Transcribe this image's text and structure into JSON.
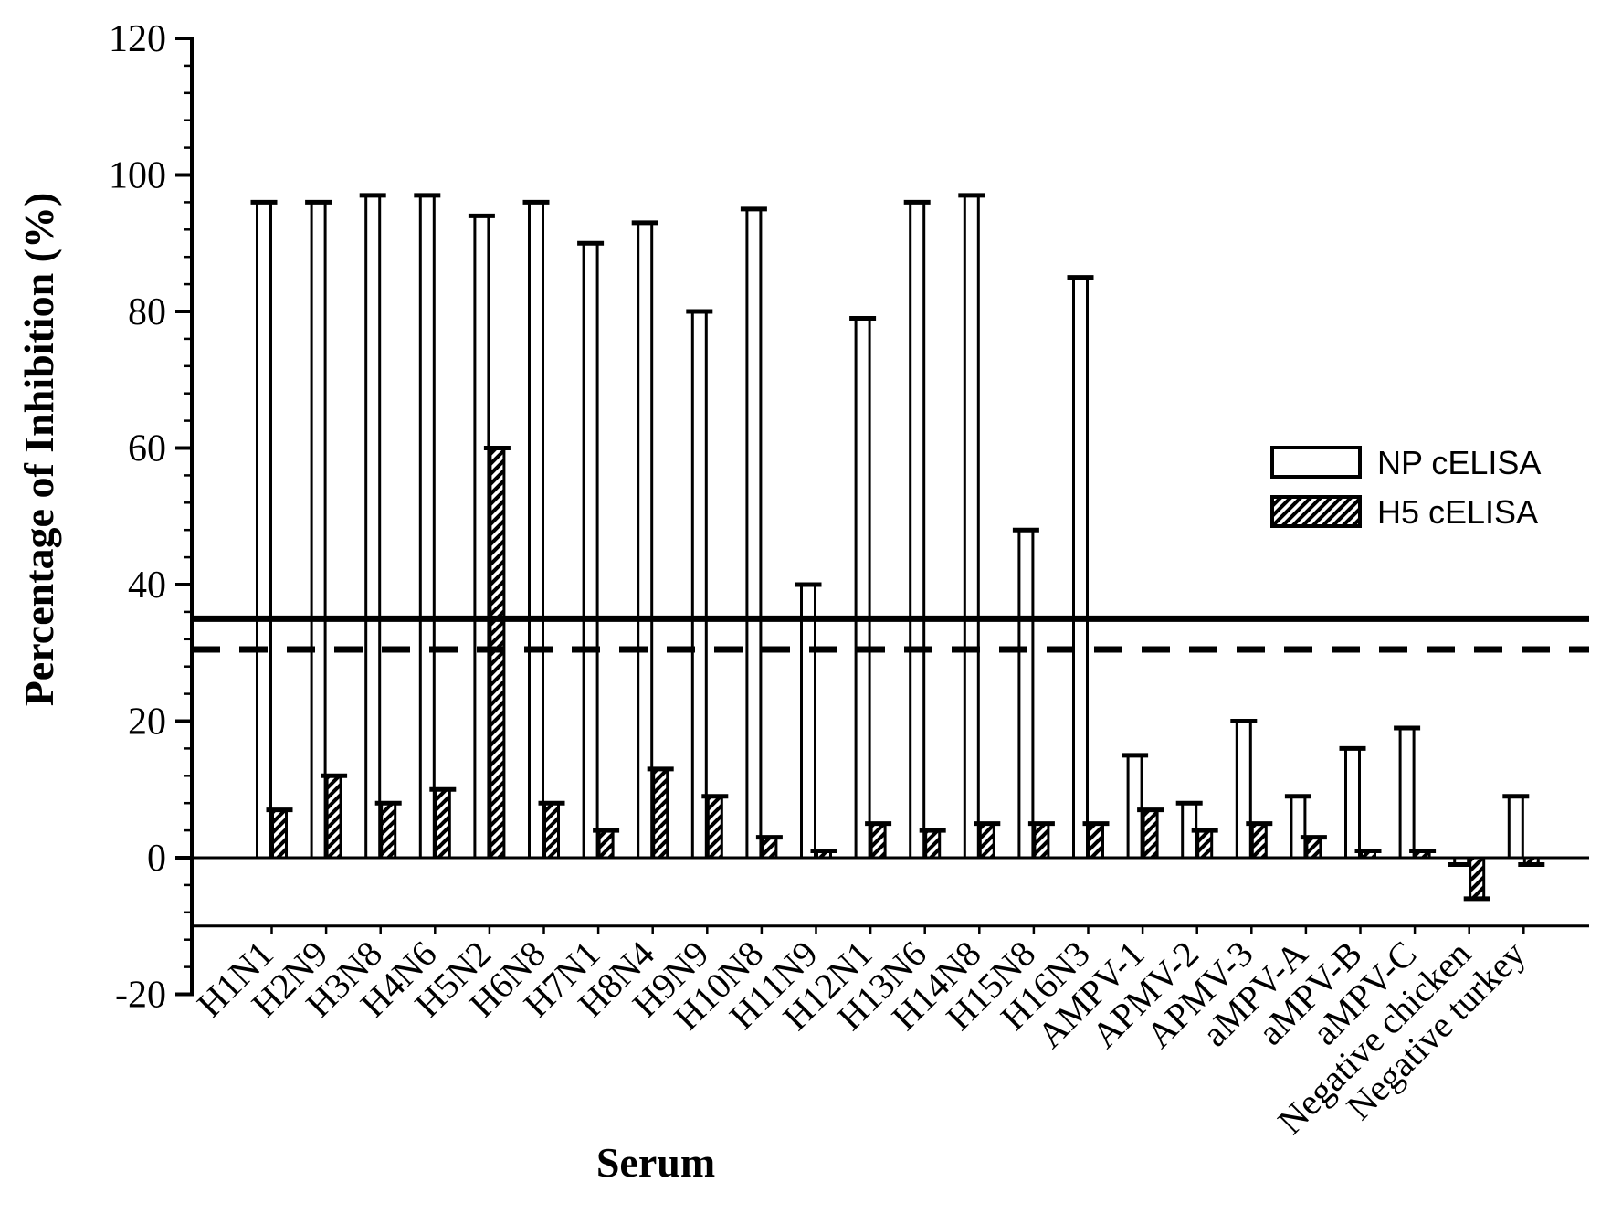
{
  "page": {
    "background": "#ffffff",
    "foreground": "#000000"
  },
  "chart_data": {
    "type": "bar",
    "title": "",
    "xlabel": "Serum",
    "ylabel": "Percentage of Inhibition (%)",
    "ylim": [
      -20,
      120
    ],
    "y_tick_labels": [
      120,
      100,
      80,
      60,
      40,
      20,
      0,
      -20
    ],
    "y_major_step": 20,
    "y_minor_step": 4,
    "grid": false,
    "legend_position": "upper-right",
    "bar_style_note": "open = white fill black outline, hatched = diagonal black hatching; each bar has a small error-bar cap at its end",
    "categories": [
      "H1N1",
      "H2N9",
      "H3N8",
      "H4N6",
      "H5N2",
      "H6N8",
      "H7N1",
      "H8N4",
      "H9N9",
      "H10N8",
      "H11N9",
      "H12N1",
      "H13N6",
      "H14N8",
      "H15N8",
      "H16N3",
      "AMPV-1",
      "APMV-2",
      "APMV-3",
      "aMPV-A",
      "aMPV-B",
      "aMPV-C",
      "Negative chicken",
      "Negative turkey"
    ],
    "series": [
      {
        "name": "NP cELISA",
        "style": "open",
        "values": [
          96,
          96,
          97,
          97,
          94,
          96,
          90,
          93,
          80,
          95,
          40,
          79,
          96,
          97,
          48,
          85,
          15,
          8,
          20,
          9,
          16,
          19,
          -1,
          9
        ]
      },
      {
        "name": "H5 cELISA",
        "style": "hatched",
        "values": [
          7,
          12,
          8,
          10,
          60,
          8,
          4,
          13,
          9,
          3,
          1,
          5,
          4,
          5,
          5,
          5,
          7,
          4,
          5,
          3,
          1,
          1,
          -6,
          -1
        ]
      }
    ],
    "reference_lines": [
      {
        "value": 35,
        "style": "solid"
      },
      {
        "value": 30.5,
        "style": "dashed"
      }
    ],
    "x_axis_line_value": -10,
    "zero_line_value": 0,
    "colors": {
      "bar_fill": "#ffffff",
      "stroke": "#000000",
      "background": "#ffffff"
    }
  }
}
